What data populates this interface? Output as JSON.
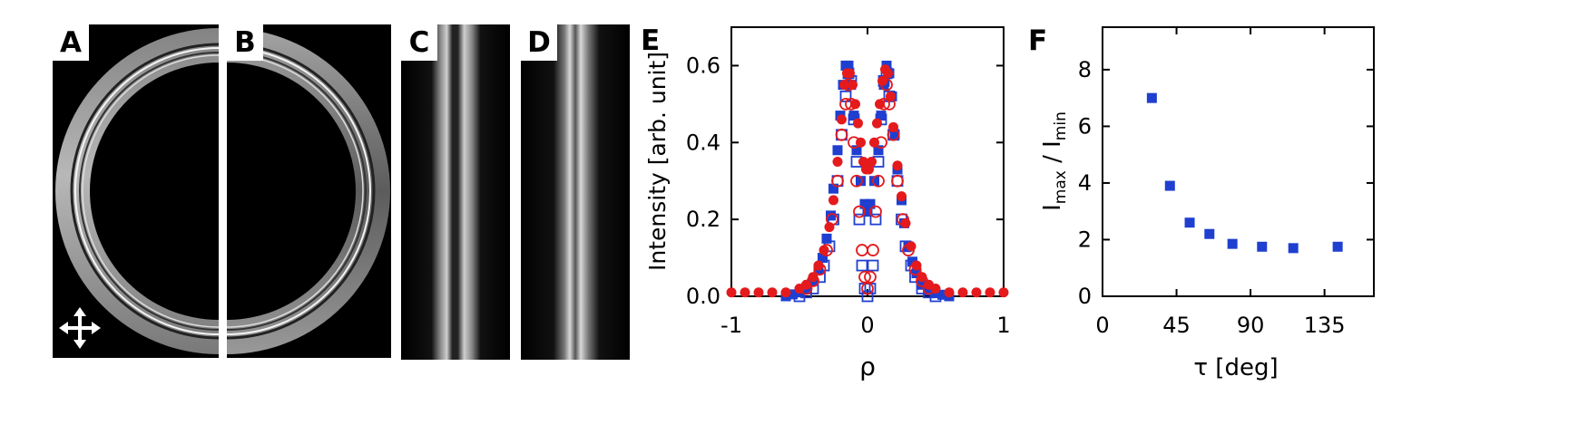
{
  "panels": {
    "A": "A",
    "B": "B",
    "C": "C",
    "D": "D",
    "E": "E",
    "F": "F"
  },
  "chart_data": [
    {
      "panel": "E",
      "type": "scatter",
      "xlabel": "ρ",
      "ylabel": "Intensity [arb. unit]",
      "xlim": [
        -1,
        1
      ],
      "ylim": [
        0,
        0.7
      ],
      "xticks": [
        "-1",
        "0",
        "1"
      ],
      "yticks": [
        "0.0",
        "0.2",
        "0.4",
        "0.6"
      ],
      "grid": false,
      "series": [
        {
          "marker": "filled-square",
          "color": "#1f3fd0",
          "x": [
            -0.6,
            -0.55,
            -0.5,
            -0.45,
            -0.4,
            -0.36,
            -0.33,
            -0.3,
            -0.27,
            -0.25,
            -0.22,
            -0.2,
            -0.18,
            -0.16,
            -0.14,
            -0.12,
            -0.1,
            -0.08,
            -0.05,
            -0.02,
            0.0,
            0.02,
            0.05,
            0.08,
            0.1,
            0.12,
            0.14,
            0.16,
            0.18,
            0.2,
            0.22,
            0.25,
            0.27,
            0.3,
            0.33,
            0.36,
            0.4,
            0.45,
            0.5,
            0.55,
            0.6
          ],
          "y": [
            0.0,
            0.005,
            0.01,
            0.02,
            0.04,
            0.07,
            0.1,
            0.15,
            0.21,
            0.28,
            0.38,
            0.47,
            0.55,
            0.6,
            0.6,
            0.55,
            0.47,
            0.38,
            0.3,
            0.24,
            0.22,
            0.24,
            0.3,
            0.38,
            0.47,
            0.55,
            0.6,
            0.58,
            0.52,
            0.42,
            0.33,
            0.25,
            0.19,
            0.13,
            0.09,
            0.06,
            0.03,
            0.015,
            0.008,
            0.004,
            0.0
          ]
        },
        {
          "marker": "open-square",
          "color": "#1f3fd0",
          "x": [
            -0.5,
            -0.45,
            -0.4,
            -0.35,
            -0.32,
            -0.28,
            -0.25,
            -0.22,
            -0.19,
            -0.16,
            -0.14,
            -0.12,
            -0.1,
            -0.08,
            -0.06,
            -0.04,
            -0.02,
            0.0,
            0.02,
            0.04,
            0.06,
            0.08,
            0.1,
            0.12,
            0.14,
            0.16,
            0.19,
            0.22,
            0.25,
            0.28,
            0.32,
            0.35,
            0.4,
            0.45,
            0.5
          ],
          "y": [
            0.0,
            0.01,
            0.02,
            0.05,
            0.08,
            0.13,
            0.2,
            0.3,
            0.42,
            0.52,
            0.58,
            0.56,
            0.46,
            0.35,
            0.2,
            0.08,
            0.02,
            0.0,
            0.02,
            0.08,
            0.2,
            0.35,
            0.46,
            0.56,
            0.58,
            0.52,
            0.42,
            0.3,
            0.2,
            0.13,
            0.08,
            0.05,
            0.02,
            0.01,
            0.0
          ]
        },
        {
          "marker": "filled-circle",
          "color": "#e41a1c",
          "x": [
            -1.0,
            -0.9,
            -0.8,
            -0.7,
            -0.6,
            -0.5,
            -0.45,
            -0.4,
            -0.36,
            -0.32,
            -0.28,
            -0.25,
            -0.22,
            -0.19,
            -0.17,
            -0.15,
            -0.13,
            -0.11,
            -0.09,
            -0.07,
            -0.05,
            -0.03,
            -0.01,
            0.01,
            0.03,
            0.05,
            0.07,
            0.09,
            0.11,
            0.13,
            0.15,
            0.17,
            0.19,
            0.22,
            0.25,
            0.28,
            0.32,
            0.36,
            0.4,
            0.45,
            0.5,
            0.6,
            0.7,
            0.8,
            0.9,
            1.0
          ],
          "y": [
            0.01,
            0.01,
            0.01,
            0.01,
            0.01,
            0.02,
            0.03,
            0.05,
            0.08,
            0.12,
            0.18,
            0.25,
            0.35,
            0.46,
            0.55,
            0.58,
            0.58,
            0.55,
            0.5,
            0.45,
            0.4,
            0.35,
            0.33,
            0.33,
            0.35,
            0.4,
            0.45,
            0.5,
            0.56,
            0.59,
            0.58,
            0.52,
            0.44,
            0.34,
            0.26,
            0.19,
            0.13,
            0.08,
            0.05,
            0.03,
            0.02,
            0.01,
            0.01,
            0.01,
            0.01,
            0.01
          ]
        },
        {
          "marker": "open-circle",
          "color": "#e41a1c",
          "x": [
            -0.45,
            -0.4,
            -0.35,
            -0.3,
            -0.26,
            -0.22,
            -0.19,
            -0.16,
            -0.14,
            -0.12,
            -0.1,
            -0.08,
            -0.06,
            -0.04,
            -0.02,
            0.0,
            0.02,
            0.04,
            0.06,
            0.08,
            0.1,
            0.12,
            0.14,
            0.16,
            0.19,
            0.22,
            0.26,
            0.3,
            0.35,
            0.4,
            0.45
          ],
          "y": [
            0.02,
            0.04,
            0.07,
            0.12,
            0.2,
            0.3,
            0.42,
            0.5,
            0.55,
            0.5,
            0.4,
            0.3,
            0.22,
            0.12,
            0.05,
            0.02,
            0.05,
            0.12,
            0.22,
            0.3,
            0.4,
            0.5,
            0.55,
            0.5,
            0.42,
            0.3,
            0.2,
            0.12,
            0.07,
            0.04,
            0.02
          ]
        }
      ]
    },
    {
      "panel": "F",
      "type": "scatter",
      "xlabel": "τ [deg]",
      "ylabel_main": "I",
      "ylabel_sub1": "max",
      "ylabel_mid": " / I",
      "ylabel_sub2": "min",
      "xlim": [
        0,
        165
      ],
      "ylim": [
        0,
        9.5
      ],
      "xticks": [
        "0",
        "45",
        "90",
        "135"
      ],
      "yticks": [
        "0",
        "2",
        "4",
        "6",
        "8"
      ],
      "grid": false,
      "series": [
        {
          "marker": "filled-square",
          "color": "#1f3fd0",
          "x": [
            30,
            41,
            53,
            65,
            79,
            97,
            116,
            143
          ],
          "y": [
            7.0,
            3.9,
            2.6,
            2.2,
            1.85,
            1.75,
            1.7,
            1.75
          ]
        }
      ]
    }
  ]
}
